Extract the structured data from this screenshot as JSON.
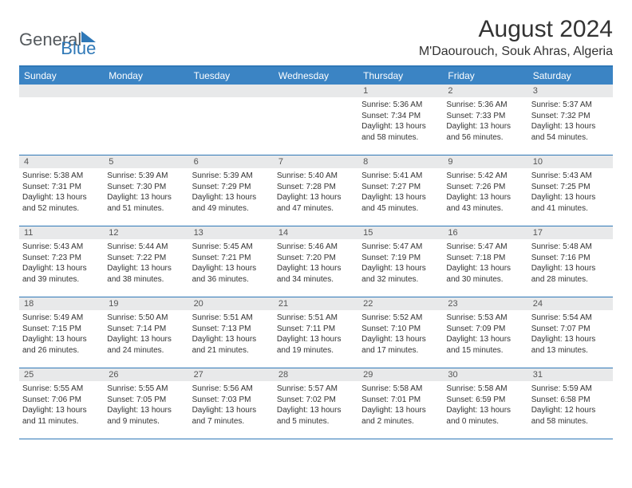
{
  "logo": {
    "text1": "General",
    "text2": "Blue"
  },
  "title": "August 2024",
  "location": "M'Daourouch, Souk Ahras, Algeria",
  "colors": {
    "header_bg": "#3b84c4",
    "border": "#2f78b7",
    "daynum_bg": "#e8e9ea",
    "logo_gray": "#555a5e",
    "logo_blue": "#2f78b7",
    "text": "#333333",
    "bg": "#ffffff"
  },
  "day_names": [
    "Sunday",
    "Monday",
    "Tuesday",
    "Wednesday",
    "Thursday",
    "Friday",
    "Saturday"
  ],
  "blanks_before": 4,
  "days": [
    {
      "n": 1,
      "sr": "5:36 AM",
      "ss": "7:34 PM",
      "dl": "13 hours and 58 minutes."
    },
    {
      "n": 2,
      "sr": "5:36 AM",
      "ss": "7:33 PM",
      "dl": "13 hours and 56 minutes."
    },
    {
      "n": 3,
      "sr": "5:37 AM",
      "ss": "7:32 PM",
      "dl": "13 hours and 54 minutes."
    },
    {
      "n": 4,
      "sr": "5:38 AM",
      "ss": "7:31 PM",
      "dl": "13 hours and 52 minutes."
    },
    {
      "n": 5,
      "sr": "5:39 AM",
      "ss": "7:30 PM",
      "dl": "13 hours and 51 minutes."
    },
    {
      "n": 6,
      "sr": "5:39 AM",
      "ss": "7:29 PM",
      "dl": "13 hours and 49 minutes."
    },
    {
      "n": 7,
      "sr": "5:40 AM",
      "ss": "7:28 PM",
      "dl": "13 hours and 47 minutes."
    },
    {
      "n": 8,
      "sr": "5:41 AM",
      "ss": "7:27 PM",
      "dl": "13 hours and 45 minutes."
    },
    {
      "n": 9,
      "sr": "5:42 AM",
      "ss": "7:26 PM",
      "dl": "13 hours and 43 minutes."
    },
    {
      "n": 10,
      "sr": "5:43 AM",
      "ss": "7:25 PM",
      "dl": "13 hours and 41 minutes."
    },
    {
      "n": 11,
      "sr": "5:43 AM",
      "ss": "7:23 PM",
      "dl": "13 hours and 39 minutes."
    },
    {
      "n": 12,
      "sr": "5:44 AM",
      "ss": "7:22 PM",
      "dl": "13 hours and 38 minutes."
    },
    {
      "n": 13,
      "sr": "5:45 AM",
      "ss": "7:21 PM",
      "dl": "13 hours and 36 minutes."
    },
    {
      "n": 14,
      "sr": "5:46 AM",
      "ss": "7:20 PM",
      "dl": "13 hours and 34 minutes."
    },
    {
      "n": 15,
      "sr": "5:47 AM",
      "ss": "7:19 PM",
      "dl": "13 hours and 32 minutes."
    },
    {
      "n": 16,
      "sr": "5:47 AM",
      "ss": "7:18 PM",
      "dl": "13 hours and 30 minutes."
    },
    {
      "n": 17,
      "sr": "5:48 AM",
      "ss": "7:16 PM",
      "dl": "13 hours and 28 minutes."
    },
    {
      "n": 18,
      "sr": "5:49 AM",
      "ss": "7:15 PM",
      "dl": "13 hours and 26 minutes."
    },
    {
      "n": 19,
      "sr": "5:50 AM",
      "ss": "7:14 PM",
      "dl": "13 hours and 24 minutes."
    },
    {
      "n": 20,
      "sr": "5:51 AM",
      "ss": "7:13 PM",
      "dl": "13 hours and 21 minutes."
    },
    {
      "n": 21,
      "sr": "5:51 AM",
      "ss": "7:11 PM",
      "dl": "13 hours and 19 minutes."
    },
    {
      "n": 22,
      "sr": "5:52 AM",
      "ss": "7:10 PM",
      "dl": "13 hours and 17 minutes."
    },
    {
      "n": 23,
      "sr": "5:53 AM",
      "ss": "7:09 PM",
      "dl": "13 hours and 15 minutes."
    },
    {
      "n": 24,
      "sr": "5:54 AM",
      "ss": "7:07 PM",
      "dl": "13 hours and 13 minutes."
    },
    {
      "n": 25,
      "sr": "5:55 AM",
      "ss": "7:06 PM",
      "dl": "13 hours and 11 minutes."
    },
    {
      "n": 26,
      "sr": "5:55 AM",
      "ss": "7:05 PM",
      "dl": "13 hours and 9 minutes."
    },
    {
      "n": 27,
      "sr": "5:56 AM",
      "ss": "7:03 PM",
      "dl": "13 hours and 7 minutes."
    },
    {
      "n": 28,
      "sr": "5:57 AM",
      "ss": "7:02 PM",
      "dl": "13 hours and 5 minutes."
    },
    {
      "n": 29,
      "sr": "5:58 AM",
      "ss": "7:01 PM",
      "dl": "13 hours and 2 minutes."
    },
    {
      "n": 30,
      "sr": "5:58 AM",
      "ss": "6:59 PM",
      "dl": "13 hours and 0 minutes."
    },
    {
      "n": 31,
      "sr": "5:59 AM",
      "ss": "6:58 PM",
      "dl": "12 hours and 58 minutes."
    }
  ],
  "labels": {
    "sunrise": "Sunrise: ",
    "sunset": "Sunset: ",
    "daylight": "Daylight: "
  }
}
